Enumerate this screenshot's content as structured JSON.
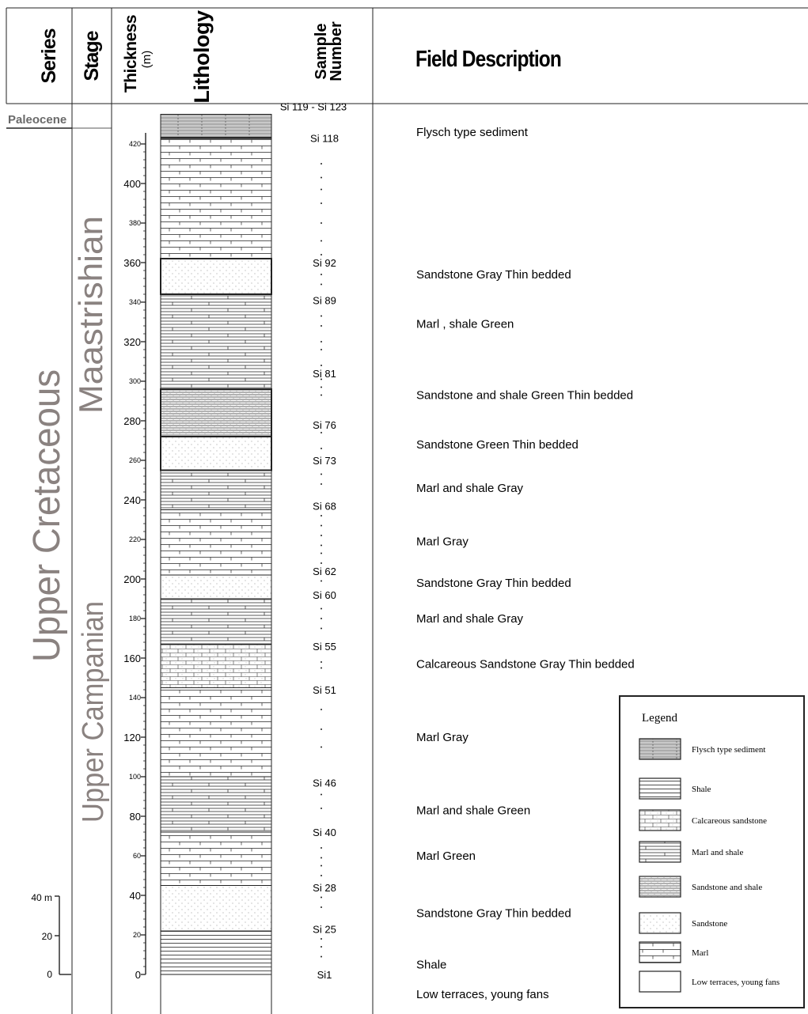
{
  "headers": {
    "series": "Series",
    "stage": "Stage",
    "thickness": "Thickness",
    "thickness_unit": "(m)",
    "lithology": "Lithology",
    "sample_line1": "Sample",
    "sample_line2": "Number",
    "field_description": "Field Description"
  },
  "series_labels": {
    "paleocene": "Paleocene",
    "upper_cretaceous": "Upper Cretaceous"
  },
  "stage_labels": {
    "maastrishian": "Maastrishian",
    "upper_campanian": "Upper Campanian"
  },
  "thickness_axis": {
    "unit": "m",
    "min": 0,
    "max": 420,
    "major_labels": [
      "0",
      "40",
      "80",
      "120",
      "160",
      "200",
      "240",
      "280",
      "320",
      "360",
      "400"
    ],
    "minor_labels": [
      "20",
      "60",
      "100",
      "140",
      "180",
      "220",
      "260",
      "300",
      "340",
      "380",
      "420"
    ]
  },
  "scale_bar": {
    "labels": [
      "40 m",
      "20",
      "0"
    ]
  },
  "colors": {
    "stage_text": "#8a8280",
    "paleocene_text": "#6a6a6a",
    "line": "#222222"
  },
  "lithology_units": [
    {
      "type": "low_terraces",
      "from": -30,
      "to": 0
    },
    {
      "type": "shale",
      "from": 0,
      "to": 22
    },
    {
      "type": "sandstone",
      "from": 22,
      "to": 45
    },
    {
      "type": "marl",
      "from": 45,
      "to": 72
    },
    {
      "type": "marl_and_shale",
      "from": 72,
      "to": 100
    },
    {
      "type": "marl",
      "from": 100,
      "to": 145
    },
    {
      "type": "calcareous_sandstone",
      "from": 145,
      "to": 167
    },
    {
      "type": "marl_and_shale",
      "from": 167,
      "to": 190
    },
    {
      "type": "sandstone",
      "from": 190,
      "to": 202
    },
    {
      "type": "marl",
      "from": 202,
      "to": 235
    },
    {
      "type": "marl_and_shale",
      "from": 235,
      "to": 255
    },
    {
      "type": "sandstone",
      "from": 255,
      "to": 272
    },
    {
      "type": "sandstone_and_shale",
      "from": 272,
      "to": 296
    },
    {
      "type": "marl_and_shale",
      "from": 296,
      "to": 344
    },
    {
      "type": "sandstone",
      "from": 344,
      "to": 362
    },
    {
      "type": "marl",
      "from": 362,
      "to": 423
    },
    {
      "type": "flysch",
      "from": 423,
      "to": 435
    }
  ],
  "samples": [
    {
      "label": "Si 119  -  Si 123",
      "depth": 435
    },
    {
      "label": "Si 118",
      "depth": 423
    },
    {
      "label": "Si 92",
      "depth": 360
    },
    {
      "label": "Si 89",
      "depth": 341
    },
    {
      "label": "Si 81",
      "depth": 304
    },
    {
      "label": "Si 76",
      "depth": 278
    },
    {
      "label": "Si 73",
      "depth": 260
    },
    {
      "label": "Si 68",
      "depth": 237
    },
    {
      "label": "Si 62",
      "depth": 204
    },
    {
      "label": "Si 60",
      "depth": 192
    },
    {
      "label": "Si 55",
      "depth": 166
    },
    {
      "label": "Si 51",
      "depth": 144
    },
    {
      "label": "Si 46",
      "depth": 97
    },
    {
      "label": "Si 40",
      "depth": 72
    },
    {
      "label": "Si 28",
      "depth": 44
    },
    {
      "label": "Si 25",
      "depth": 23
    },
    {
      "label": "Si1",
      "depth": 0
    }
  ],
  "sample_dots": [
    410,
    403,
    397,
    390,
    380,
    371,
    364,
    354,
    349,
    333,
    328,
    320,
    316,
    308,
    301,
    297,
    293,
    274,
    266,
    253,
    248,
    232,
    227,
    222,
    217,
    213,
    208,
    199,
    185,
    180,
    175,
    158,
    155,
    134,
    124,
    115,
    91,
    84,
    64,
    59,
    55,
    50,
    39,
    34,
    18,
    14,
    9
  ],
  "descriptions": [
    {
      "text": "Flysch type sediment",
      "depth": 426
    },
    {
      "text": "Sandstone Gray  Thin bedded",
      "depth": 354
    },
    {
      "text": "Marl , shale  Green",
      "depth": 329
    },
    {
      "text": "Sandstone  and shale  Green Thin bedded",
      "depth": 293
    },
    {
      "text": "Sandstone Green  Thin bedded",
      "depth": 268
    },
    {
      "text": "Marl  and shale  Gray",
      "depth": 246
    },
    {
      "text": "Marl Gray",
      "depth": 219
    },
    {
      "text": "Sandstone Gray Thin bedded",
      "depth": 198
    },
    {
      "text": "Marl  and shale  Gray",
      "depth": 180
    },
    {
      "text": "Calcareous Sandstone Gray Thin bedded",
      "depth": 157
    },
    {
      "text": "Marl Gray",
      "depth": 120
    },
    {
      "text": "Marl  and shale  Green",
      "depth": 83
    },
    {
      "text": "Marl Green",
      "depth": 60
    },
    {
      "text": "Sandstone Gray Thin bedded",
      "depth": 31
    },
    {
      "text": "Shale",
      "depth": 5
    },
    {
      "text": "Low terraces, young fans",
      "depth": -10
    }
  ],
  "legend": {
    "title": "Legend",
    "items": [
      {
        "type": "flysch",
        "label": "Flysch type sediment"
      },
      {
        "type": "shale",
        "label": "Shale"
      },
      {
        "type": "calcareous_sandstone",
        "label": "Calcareous sandstone"
      },
      {
        "type": "marl_and_shale",
        "label": "Marl and shale"
      },
      {
        "type": "sandstone_and_shale",
        "label": "Sandstone  and shale"
      },
      {
        "type": "sandstone",
        "label": "Sandstone"
      },
      {
        "type": "marl",
        "label": "Marl"
      },
      {
        "type": "low_terraces",
        "label": "Low terraces, young fans"
      }
    ]
  }
}
